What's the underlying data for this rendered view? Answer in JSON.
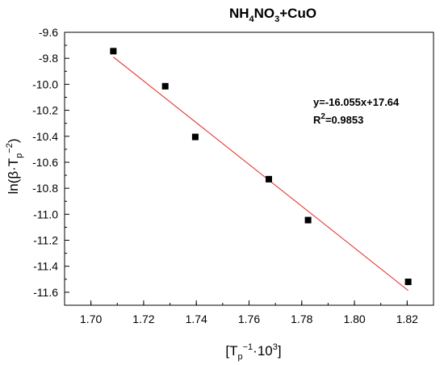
{
  "chart_data": {
    "type": "scatter",
    "title": {
      "parts": [
        {
          "text": "NH",
          "sub": false
        },
        {
          "text": "4",
          "sub": true
        },
        {
          "text": "NO",
          "sub": false
        },
        {
          "text": "3",
          "sub": true
        },
        {
          "text": "+CuO",
          "sub": false
        }
      ]
    },
    "xlabel": {
      "parts": [
        {
          "text": "[T",
          "pos": "base"
        },
        {
          "text": "p",
          "pos": "sub"
        },
        {
          "text": "−1",
          "pos": "sup"
        },
        {
          "text": "·10",
          "pos": "base"
        },
        {
          "text": "3",
          "pos": "sup"
        },
        {
          "text": "]",
          "pos": "base"
        }
      ]
    },
    "ylabel": {
      "parts": [
        {
          "text": "ln(β·T",
          "pos": "base"
        },
        {
          "text": "p",
          "pos": "sub"
        },
        {
          "text": "−2",
          "pos": "sup"
        },
        {
          "text": ")",
          "pos": "base"
        }
      ]
    },
    "xlim": [
      1.69,
      1.83
    ],
    "ylim": [
      -11.7,
      -9.6
    ],
    "x_ticks": [
      "1.70",
      "1.72",
      "1.74",
      "1.76",
      "1.78",
      "1.80",
      "1.82"
    ],
    "y_ticks": [
      "-9.6",
      "-9.8",
      "-10.0",
      "-10.2",
      "-10.4",
      "-10.6",
      "-10.8",
      "-11.0",
      "-11.2",
      "-11.4",
      "-11.6"
    ],
    "series": [
      {
        "marker": "square",
        "color": "#000000",
        "x": [
          1.7085,
          1.7282,
          1.7396,
          1.7675,
          1.7824,
          1.8204
        ],
        "y": [
          -9.745,
          -10.015,
          -10.405,
          -10.73,
          -11.045,
          -11.52
        ]
      }
    ],
    "fit_line": {
      "color": "#e8231f",
      "slope": -16.055,
      "intercept": 17.64,
      "x_range": [
        1.7085,
        1.8204
      ]
    },
    "annotation": {
      "equation": "y=-16.055x+17.64",
      "r2_prefix": "R",
      "r2_sup": "2",
      "r2_value": "=0.9853"
    },
    "grid": false
  }
}
